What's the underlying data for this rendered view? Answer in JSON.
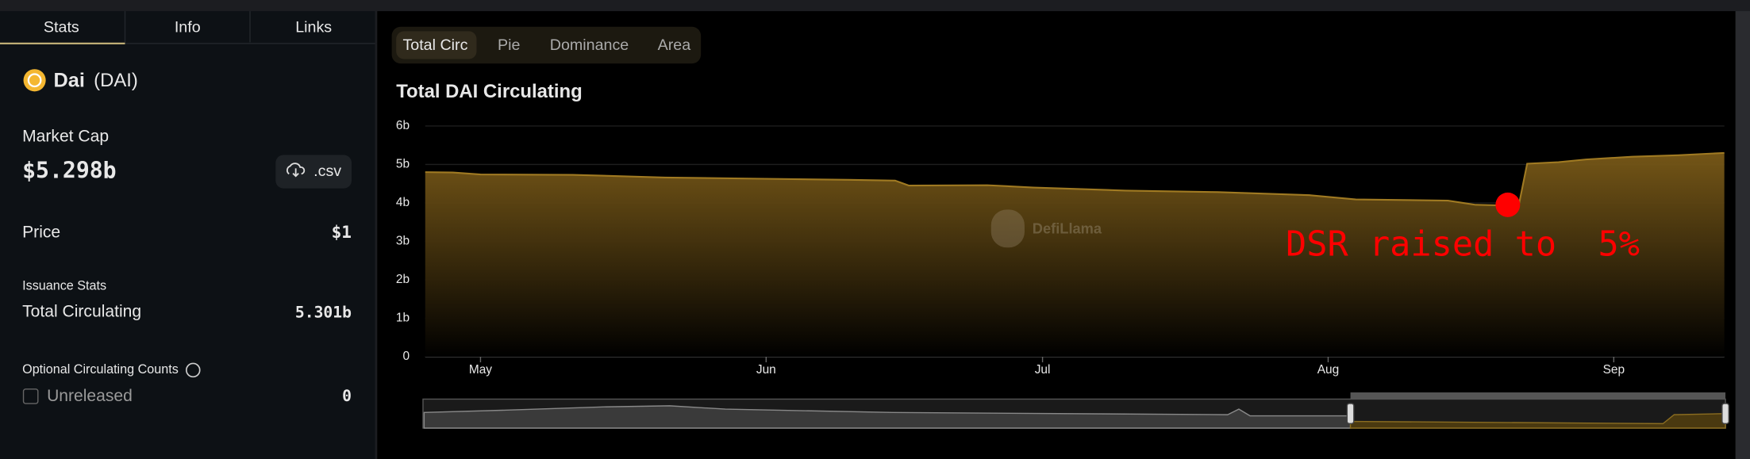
{
  "sidebar": {
    "tabs": [
      "Stats",
      "Info",
      "Links"
    ],
    "token_name": "Dai",
    "token_symbol": "(DAI)",
    "market_cap_label": "Market Cap",
    "market_cap": "$5.298b",
    "csv_button": ".csv",
    "price_label": "Price",
    "price": "$1",
    "issuance_title": "Issuance Stats",
    "total_circulating_label": "Total Circulating",
    "total_circulating": "5.301b",
    "optional_title": "Optional Circulating Counts",
    "unreleased_label": "Unreleased",
    "unreleased": "0"
  },
  "chart_tabs": [
    "Total Circ",
    "Pie",
    "Dominance",
    "Area"
  ],
  "watermark": "DefiLlama",
  "chart_data": {
    "type": "area",
    "title": "Total DAI Circulating",
    "x": [
      -6,
      -3,
      0,
      10,
      20,
      30,
      40,
      45,
      46.5,
      55,
      60,
      70,
      80,
      90,
      95,
      105,
      108,
      111.5,
      112.7,
      113.6,
      117,
      120,
      125,
      130,
      135
    ],
    "values": [
      4.8,
      4.79,
      4.74,
      4.73,
      4.66,
      4.63,
      4.6,
      4.58,
      4.45,
      4.46,
      4.4,
      4.32,
      4.28,
      4.2,
      4.09,
      4.06,
      3.95,
      3.93,
      3.95,
      5.02,
      5.06,
      5.13,
      5.2,
      5.24,
      5.3
    ],
    "color": "#a07a22",
    "xlim": [
      -6,
      135
    ],
    "xticks": [
      {
        "value": 0,
        "label": "May"
      },
      {
        "value": 31,
        "label": "Jun"
      },
      {
        "value": 61,
        "label": "Jul"
      },
      {
        "value": 92,
        "label": "Aug"
      },
      {
        "value": 123,
        "label": "Sep"
      }
    ],
    "ylim": [
      0,
      6
    ],
    "yticks": [
      0,
      {
        "value": 1,
        "label": "1b"
      },
      {
        "value": 2,
        "label": "2b"
      },
      {
        "value": 3,
        "label": "3b"
      },
      {
        "value": 4,
        "label": "4b"
      },
      {
        "value": 5,
        "label": "5b"
      },
      {
        "value": 6,
        "label": "6b"
      }
    ],
    "grid": true,
    "annotation": {
      "text": "DSR raised to  5%",
      "x": 111.5,
      "y": 3.95,
      "color": "#ff0000"
    }
  }
}
